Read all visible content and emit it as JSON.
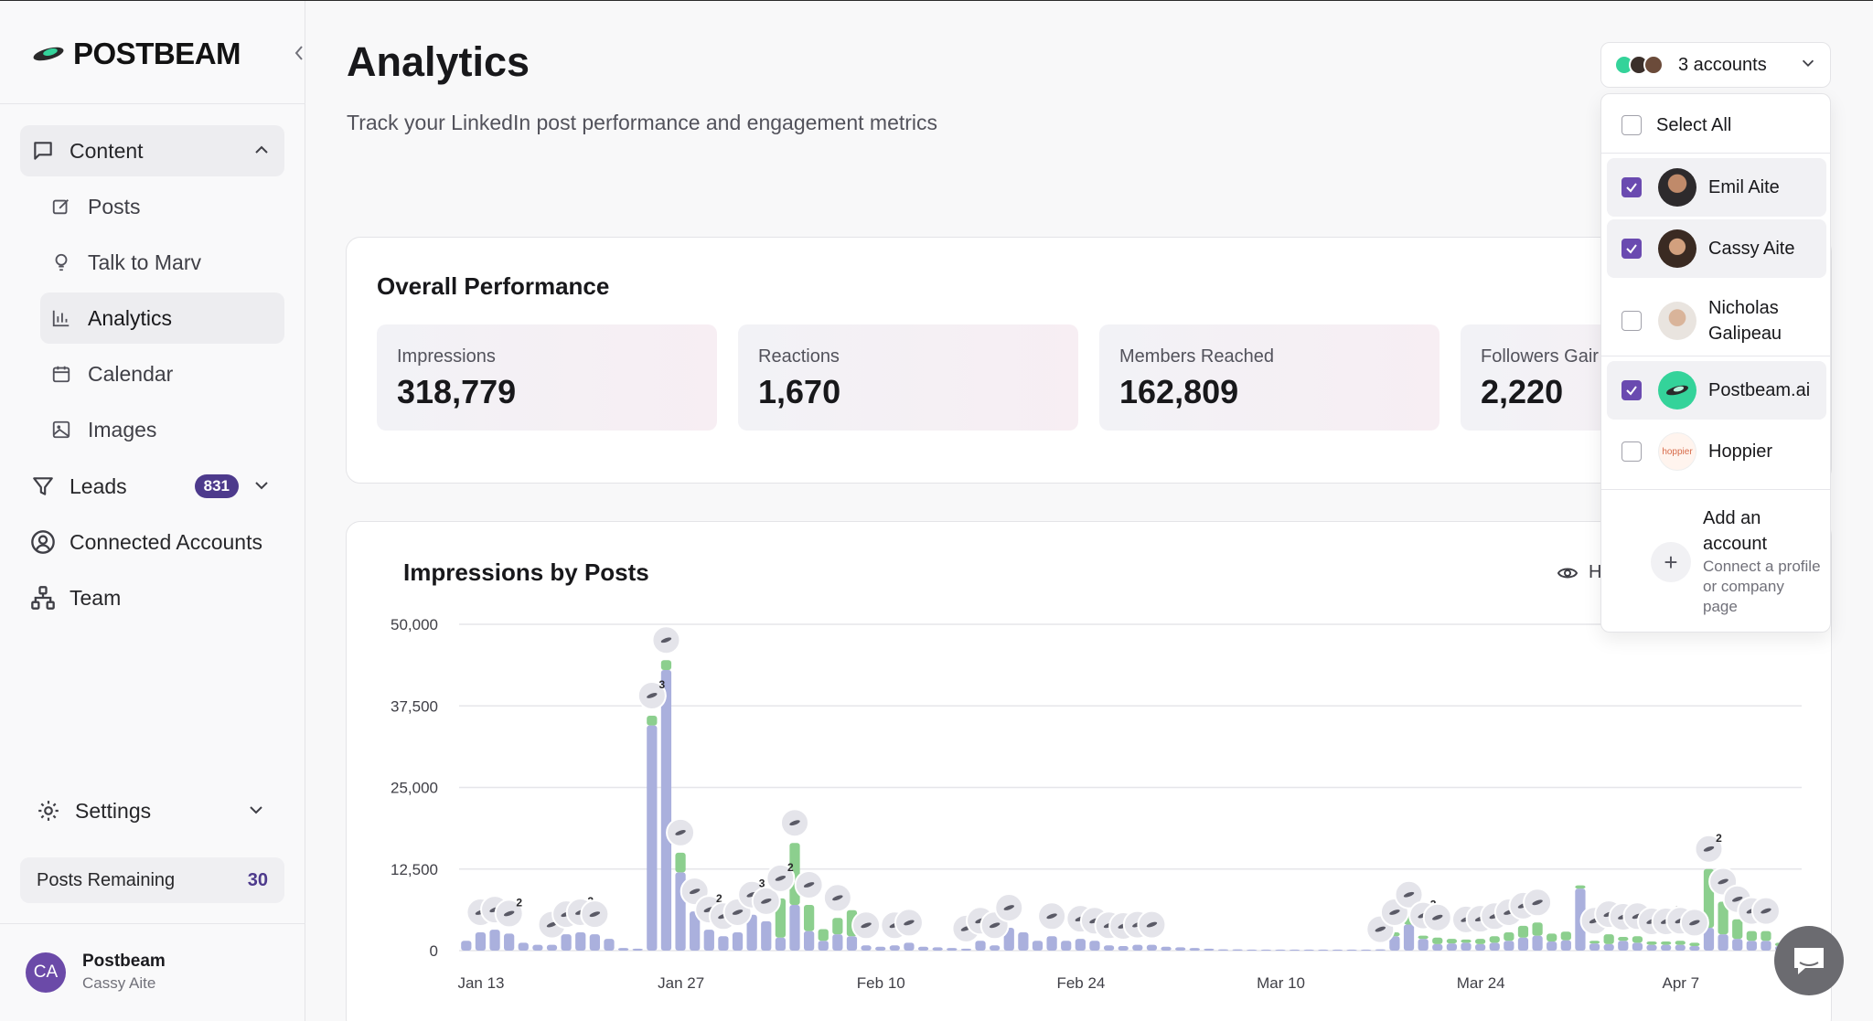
{
  "brand": {
    "name": "POSTBEAM"
  },
  "sidebar": {
    "content_label": "Content",
    "sub_items": [
      {
        "label": "Posts",
        "icon": "edit-icon"
      },
      {
        "label": "Talk to Marv",
        "icon": "lightbulb-icon"
      },
      {
        "label": "Analytics",
        "icon": "bar-chart-icon"
      },
      {
        "label": "Calendar",
        "icon": "calendar-icon"
      },
      {
        "label": "Images",
        "icon": "image-icon"
      }
    ],
    "leads_label": "Leads",
    "leads_count": "831",
    "connected_label": "Connected Accounts",
    "team_label": "Team",
    "settings_label": "Settings",
    "posts_remaining_label": "Posts Remaining",
    "posts_remaining_value": "30",
    "user": {
      "initials": "CA",
      "name": "Postbeam",
      "sub": "Cassy Aite"
    }
  },
  "header": {
    "title": "Analytics",
    "subtitle": "Track your LinkedIn post performance and engagement metrics"
  },
  "accounts": {
    "button_label": "3 accounts",
    "select_all": "Select All",
    "items": [
      {
        "name": "Emil Aite",
        "checked": true,
        "color": "#3b2f2a"
      },
      {
        "name": "Cassy Aite",
        "checked": true,
        "color": "#4a3426"
      },
      {
        "name": "Nicholas Galipeau",
        "checked": false,
        "color": "#b9a493"
      },
      {
        "name": "Postbeam.ai",
        "checked": true,
        "color": "#34d39a"
      },
      {
        "name": "Hoppier",
        "checked": false,
        "color": "#fff4ee"
      }
    ],
    "hoppier_logo": "hoppier",
    "add_title": "Add an account",
    "add_sub": "Connect a profile or company page",
    "accent": "#6a4ab0"
  },
  "overall": {
    "title": "Overall Performance",
    "metrics": [
      {
        "label": "Impressions",
        "value": "318,779"
      },
      {
        "label": "Reactions",
        "value": "1,670"
      },
      {
        "label": "Members Reached",
        "value": "162,809"
      },
      {
        "label": "Followers Gair",
        "value": "2,220"
      }
    ]
  },
  "impressions_card": {
    "title": "Impressions by Posts",
    "hide_label": "H"
  },
  "chart_data": {
    "type": "bar",
    "title": "Impressions by Posts",
    "ylim": [
      0,
      50000
    ],
    "yticks": [
      "0",
      "12,500",
      "25,000",
      "37,500",
      "50,000"
    ],
    "ytick_values": [
      0,
      12500,
      25000,
      37500,
      50000
    ],
    "xtick_labels": [
      "Jan 13",
      "Jan 27",
      "Feb 10",
      "Feb 24",
      "Mar 10",
      "Mar 24",
      "Apr 7"
    ],
    "xtick_days": [
      0,
      14,
      28,
      42,
      56,
      70,
      84
    ],
    "grid": true,
    "series_colors": {
      "base": "#aab0dd",
      "top": "#8ccf8e"
    },
    "base": [
      1500,
      2800,
      3200,
      2600,
      1200,
      900,
      900,
      2500,
      2800,
      2500,
      1800,
      400,
      300,
      34500,
      43000,
      12000,
      6000,
      3200,
      2200,
      2800,
      5500,
      4500,
      2000,
      7000,
      3000,
      1500,
      2500,
      2200,
      800,
      600,
      800,
      1200,
      600,
      500,
      400,
      300,
      1500,
      800,
      3500,
      2800,
      1500,
      2200,
      1500,
      1800,
      1500,
      800,
      700,
      900,
      900,
      600,
      500,
      400,
      300,
      200,
      200,
      150,
      150,
      150,
      150,
      150,
      150,
      150,
      150,
      150,
      200,
      2200,
      4000,
      1800,
      1000,
      1100,
      1200,
      1000,
      1200,
      1500,
      2000,
      2300,
      1400,
      1600,
      9500,
      1100,
      1000,
      1500,
      1200,
      900,
      900,
      900,
      700,
      3500,
      2500,
      1800,
      1500,
      1500,
      700,
      600
    ],
    "top": [
      0,
      0,
      0,
      0,
      0,
      0,
      0,
      0,
      0,
      0,
      0,
      0,
      0,
      1500,
      1500,
      3000,
      0,
      0,
      0,
      0,
      0,
      0,
      6000,
      9500,
      4000,
      1800,
      2500,
      4000,
      0,
      0,
      0,
      0,
      0,
      0,
      0,
      0,
      0,
      0,
      0,
      0,
      0,
      0,
      0,
      0,
      0,
      0,
      0,
      0,
      0,
      0,
      0,
      0,
      0,
      0,
      0,
      0,
      0,
      0,
      0,
      0,
      0,
      0,
      0,
      0,
      0,
      600,
      1500,
      500,
      1000,
      700,
      500,
      800,
      1000,
      1300,
      1800,
      2000,
      1200,
      1300,
      500,
      400,
      1500,
      600,
      1000,
      500,
      500,
      600,
      500,
      9000,
      5000,
      3000,
      1500,
      1500,
      500,
      400
    ],
    "post_marker_days": [
      1,
      2,
      3,
      6,
      7,
      8,
      9,
      13,
      14,
      15,
      16,
      17,
      18,
      19,
      20,
      21,
      22,
      23,
      24,
      26,
      28,
      30,
      31,
      35,
      36,
      37,
      38,
      41,
      43,
      44,
      45,
      46,
      47,
      48,
      64,
      65,
      66,
      67,
      68,
      70,
      71,
      72,
      73,
      74,
      75,
      79,
      80,
      81,
      82,
      83,
      84,
      85,
      86,
      87,
      88,
      89,
      90,
      91
    ],
    "post_marker_counts": {
      "3": "2",
      "8": "2",
      "13": "3",
      "17": "2",
      "20": "3",
      "22": "2",
      "67": "2",
      "72": "2",
      "74": "2",
      "84": "4",
      "87": "2"
    }
  }
}
